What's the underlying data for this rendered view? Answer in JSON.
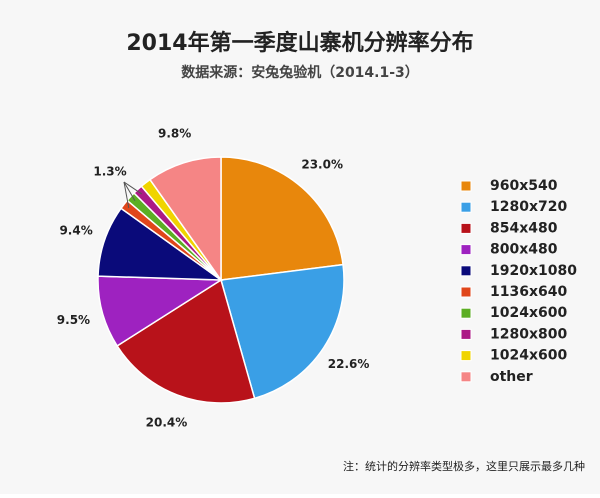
{
  "chart_data": {
    "type": "pie",
    "title": "2014年第一季度山寨机分辨率分布",
    "subtitle": "数据来源：安兔兔验机（2014.1-3）",
    "note": "注：统计的分辨率类型极多，这里只展示最多几种",
    "categories": [
      "960x540",
      "1280x720",
      "854x480",
      "800x480",
      "1920x1080",
      "1136x640",
      "1024x600",
      "1280x800",
      "1024x600",
      "other"
    ],
    "values": [
      23.0,
      22.6,
      20.4,
      9.5,
      9.4,
      1.3,
      1.3,
      1.3,
      1.4,
      9.8
    ],
    "value_labels": [
      "23.0%",
      "22.6%",
      "20.4%",
      "9.5%",
      "9.4%",
      "1.3%",
      null,
      null,
      null,
      "9.8%"
    ],
    "colors": [
      "#e8870c",
      "#3a9fe6",
      "#b8121a",
      "#9e22c0",
      "#0a0a7a",
      "#e0461a",
      "#5cae24",
      "#ac1a86",
      "#f0d400",
      "#f58585"
    ],
    "legend": "right"
  }
}
